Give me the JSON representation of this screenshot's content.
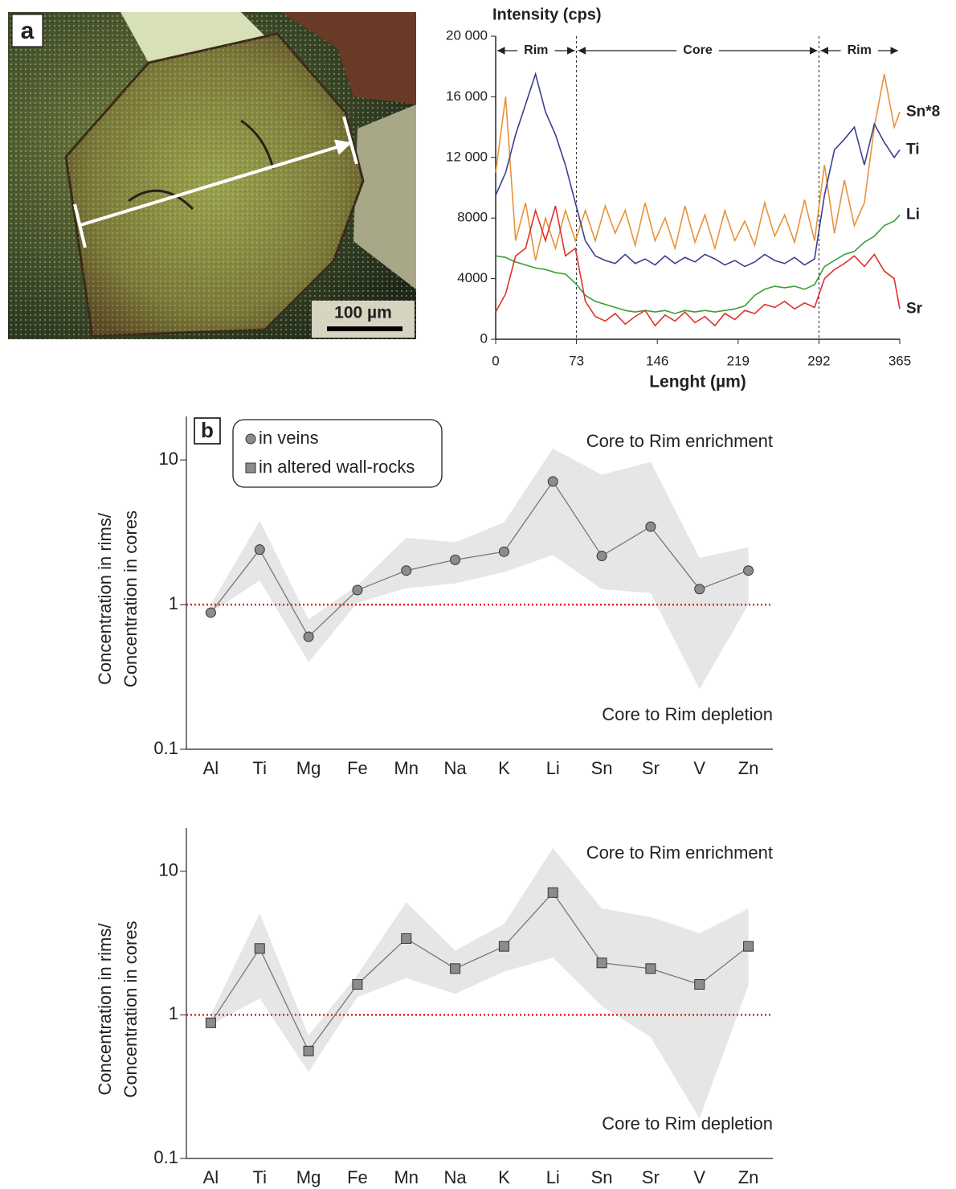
{
  "panel_a": {
    "label": "a",
    "scale_bar": "100 µm"
  },
  "chart_data": [
    {
      "type": "line",
      "y_label": "Intensity (cps)",
      "x_label": "Lenght (µm)",
      "xlim": [
        0,
        365
      ],
      "xticks": [
        0,
        73,
        146,
        219,
        292,
        365
      ],
      "ylim": [
        0,
        20000
      ],
      "yticks": [
        0,
        4000,
        8000,
        {
          "value": 12000,
          "label": "12 000"
        },
        {
          "value": 16000,
          "label": "16 000"
        },
        {
          "value": 20000,
          "label": "20 000"
        }
      ],
      "zones": [
        {
          "label": "Rim",
          "from": 0,
          "to": 73
        },
        {
          "label": "Core",
          "from": 73,
          "to": 292
        },
        {
          "label": "Rim",
          "from": 292,
          "to": 365
        }
      ],
      "x": [
        0,
        9,
        18,
        27,
        36,
        45,
        54,
        63,
        72,
        81,
        90,
        99,
        108,
        117,
        126,
        135,
        144,
        153,
        162,
        171,
        180,
        189,
        198,
        207,
        216,
        225,
        234,
        243,
        252,
        261,
        270,
        279,
        288,
        297,
        306,
        315,
        324,
        333,
        342,
        351,
        360,
        365
      ],
      "series": [
        {
          "name": "Sn*8",
          "color": "#e8923a",
          "values": [
            11000,
            16000,
            6500,
            9000,
            5200,
            8000,
            6000,
            8500,
            6500,
            8500,
            6500,
            8800,
            7000,
            8500,
            6200,
            9000,
            6500,
            8000,
            6000,
            8800,
            6400,
            8200,
            6000,
            8500,
            6500,
            7800,
            6200,
            9000,
            6800,
            8200,
            6400,
            9200,
            6500,
            11500,
            7000,
            10500,
            7500,
            9000,
            14000,
            17500,
            14000,
            15000
          ]
        },
        {
          "name": "Ti",
          "color": "#3b3f92",
          "values": [
            9500,
            11000,
            13500,
            15500,
            17500,
            15000,
            13500,
            11500,
            9000,
            6500,
            5500,
            5200,
            5000,
            5600,
            5000,
            5300,
            4900,
            5500,
            5000,
            5400,
            5100,
            5600,
            5300,
            4900,
            5200,
            4800,
            5100,
            5600,
            5200,
            5000,
            5400,
            4900,
            5300,
            9500,
            12500,
            13200,
            14000,
            11500,
            14200,
            13000,
            12000,
            12500
          ]
        },
        {
          "name": "Li",
          "color": "#3a9e3a",
          "values": [
            5500,
            5400,
            5100,
            4900,
            4700,
            4600,
            4400,
            4300,
            3700,
            2900,
            2500,
            2300,
            2100,
            1900,
            1800,
            1900,
            1800,
            1900,
            1700,
            1900,
            1800,
            1900,
            1800,
            1900,
            2000,
            2200,
            2900,
            3300,
            3500,
            3400,
            3500,
            3300,
            3600,
            4800,
            5200,
            5600,
            5800,
            6400,
            6800,
            7500,
            7800,
            8200
          ]
        },
        {
          "name": "Sr",
          "color": "#e0312b",
          "values": [
            1800,
            3000,
            5500,
            6000,
            8500,
            6500,
            8800,
            5500,
            6000,
            2500,
            1500,
            1200,
            1700,
            1000,
            1500,
            1900,
            900,
            1600,
            1200,
            1800,
            1100,
            1500,
            900,
            1700,
            1300,
            1900,
            1700,
            2300,
            2100,
            2500,
            2000,
            2400,
            2100,
            4000,
            4600,
            5000,
            5500,
            4800,
            5600,
            4500,
            4000,
            2000
          ]
        }
      ]
    },
    {
      "type": "log-band",
      "panel": "b",
      "y_label": [
        "Concentration in rims/",
        "Concentration in cores"
      ],
      "log_scale": true,
      "ylim": [
        0.1,
        20
      ],
      "yticks": [
        0.1,
        1,
        10
      ],
      "reference_line": 1,
      "reference_color": "#e02020",
      "legend": [
        {
          "label": "in veins",
          "marker": "circle"
        },
        {
          "label": "in altered wall-rocks",
          "marker": "square"
        }
      ],
      "annotations": [
        {
          "text": "Core to Rim enrichment",
          "position": "top-right"
        },
        {
          "text": "Core to Rim depletion",
          "position": "bottom-right"
        }
      ],
      "categories": [
        "Al",
        "Ti",
        "Mg",
        "Fe",
        "Mn",
        "Na",
        "K",
        "Li",
        "Sn",
        "Sr",
        "V",
        "Zn"
      ],
      "marker": "circle",
      "color": "#8c8c8c",
      "band_color": "#e6e6e6",
      "values": [
        0.88,
        2.4,
        0.6,
        1.26,
        1.72,
        2.04,
        2.32,
        7.1,
        2.17,
        3.46,
        1.28,
        1.72
      ],
      "band_upper": [
        1.0,
        3.8,
        0.79,
        1.36,
        2.9,
        2.7,
        3.7,
        12,
        7.9,
        9.7,
        2.1,
        2.5
      ],
      "band_lower": [
        0.88,
        1.47,
        0.4,
        1.03,
        1.3,
        1.4,
        1.68,
        2.2,
        1.28,
        1.2,
        0.26,
        1.0
      ]
    },
    {
      "type": "log-band",
      "y_label": [
        "Concentration in rims/",
        "Concentration in cores"
      ],
      "log_scale": true,
      "ylim": [
        0.1,
        20
      ],
      "yticks": [
        0.1,
        1,
        10
      ],
      "reference_line": 1,
      "reference_color": "#e02020",
      "annotations": [
        {
          "text": "Core to Rim enrichment",
          "position": "top-right"
        },
        {
          "text": "Core to Rim depletion",
          "position": "bottom-right"
        }
      ],
      "categories": [
        "Al",
        "Ti",
        "Mg",
        "Fe",
        "Mn",
        "Na",
        "K",
        "Li",
        "Sn",
        "Sr",
        "V",
        "Zn"
      ],
      "marker": "square",
      "color": "#8c8c8c",
      "band_color": "#e6e6e6",
      "values": [
        0.88,
        2.9,
        0.56,
        1.63,
        3.4,
        2.1,
        3.0,
        7.1,
        2.3,
        2.1,
        1.63,
        3.0
      ],
      "band_upper": [
        1.0,
        5.1,
        0.72,
        1.9,
        6.1,
        2.8,
        4.3,
        14.5,
        5.5,
        4.8,
        3.7,
        5.5
      ],
      "band_lower": [
        0.85,
        1.3,
        0.4,
        1.33,
        1.8,
        1.4,
        2.0,
        2.5,
        1.15,
        0.7,
        0.19,
        1.6
      ]
    }
  ]
}
